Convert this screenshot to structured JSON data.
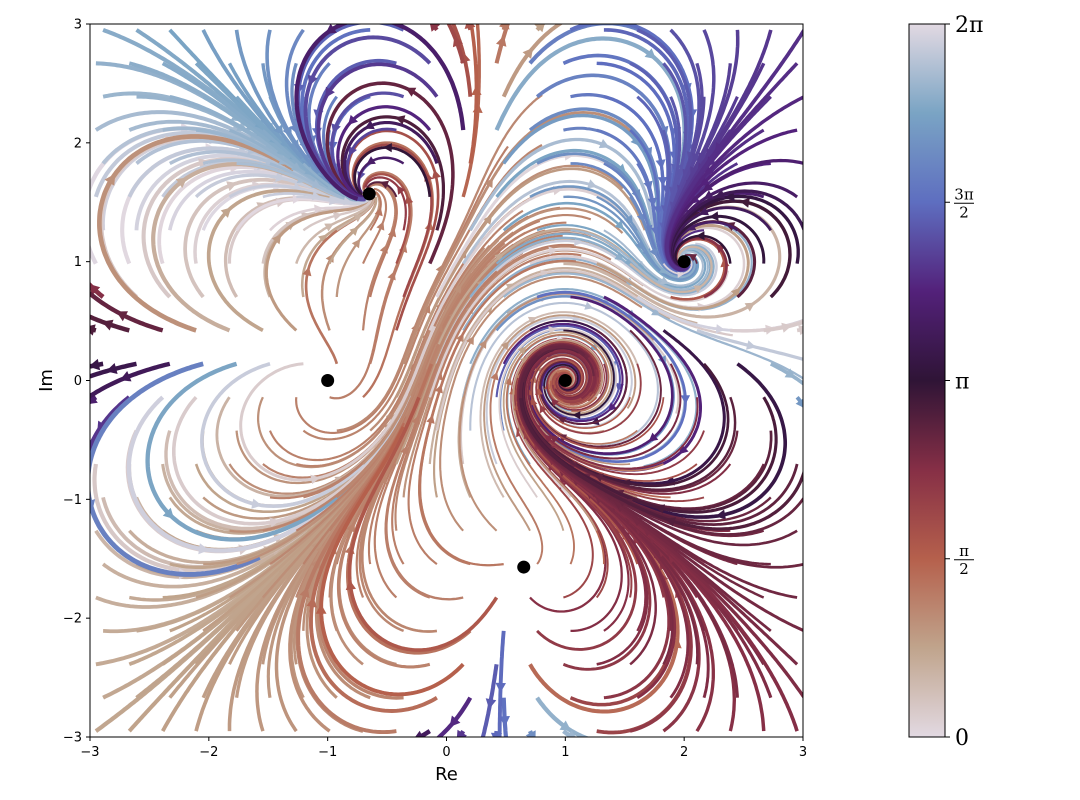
{
  "chart_data": {
    "type": "streamplot",
    "xlabel": "Re",
    "ylabel": "Im",
    "xlim": [
      -3,
      3
    ],
    "ylim": [
      -3,
      3
    ],
    "xticks": [
      "−3",
      "−2",
      "−1",
      "0",
      "1",
      "2",
      "3"
    ],
    "yticks": [
      "−3",
      "−2",
      "−1",
      "0",
      "1",
      "2",
      "3"
    ],
    "grid": false,
    "colormap": "twilight (phase)",
    "colorbar": {
      "range": [
        0,
        6.2832
      ],
      "ticks": [
        {
          "value": 0,
          "label": "0"
        },
        {
          "value": 1.5708,
          "label_num": "π",
          "label_den": "2"
        },
        {
          "value": 3.1416,
          "label": "π"
        },
        {
          "value": 4.7124,
          "label_num": "3π",
          "label_den": "2"
        },
        {
          "value": 6.2832,
          "label": "2π"
        }
      ]
    },
    "points": [
      {
        "x": -1.0,
        "y": 0.0
      },
      {
        "x": 1.0,
        "y": 0.0
      },
      {
        "x": 2.0,
        "y": 1.0
      },
      {
        "x": -0.65,
        "y": 1.57
      },
      {
        "x": 0.65,
        "y": -1.57
      }
    ],
    "colors": {
      "twilight": [
        "#e2d9e2",
        "#c0a48c",
        "#b5604c",
        "#862f46",
        "#2f1436",
        "#53217a",
        "#5e6ec0",
        "#7aa4c4",
        "#e2d9e2"
      ],
      "point": "#000000"
    }
  }
}
